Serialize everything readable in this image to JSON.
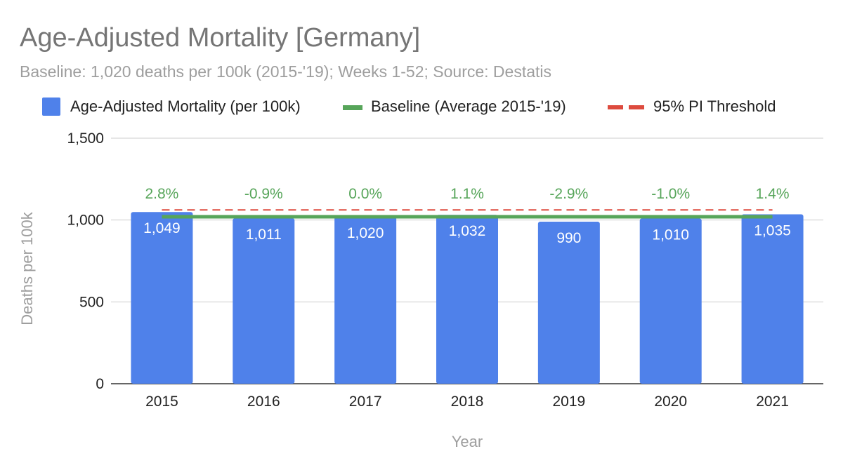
{
  "chart_data": {
    "type": "bar",
    "title": "Age-Adjusted Mortality [Germany]",
    "subtitle": "Baseline: 1,020 deaths per 100k (2015-'19); Weeks 1-52; Source: Destatis",
    "xlabel": "Year",
    "ylabel": "Deaths per 100k",
    "ylim": [
      0,
      1500
    ],
    "yticks": [
      0,
      500,
      1000,
      1500
    ],
    "ytick_labels": [
      "0",
      "500",
      "1,000",
      "1,500"
    ],
    "grid": true,
    "legend_position": "top",
    "categories": [
      "2015",
      "2016",
      "2017",
      "2018",
      "2019",
      "2020",
      "2021"
    ],
    "series": [
      {
        "name": "Age-Adjusted Mortality (per 100k)",
        "kind": "bar",
        "color": "#4f81ea",
        "values": [
          1049,
          1011,
          1020,
          1032,
          990,
          1010,
          1035
        ],
        "labels": [
          "1,049",
          "1,011",
          "1,020",
          "1,032",
          "990",
          "1,010",
          "1,035"
        ]
      },
      {
        "name": "Baseline (Average 2015-'19)",
        "kind": "line",
        "color": "#57a55a",
        "values": [
          1020,
          1020,
          1020,
          1020,
          1020,
          1020,
          1020
        ]
      },
      {
        "name": "95% PI Threshold",
        "kind": "dashed-line",
        "color": "#dd4b3e",
        "values": [
          1062,
          1062,
          1062,
          1062,
          1062,
          1062,
          1062
        ]
      }
    ],
    "annotations": {
      "color": "#57a55a",
      "labels": [
        "2.8%",
        "-0.9%",
        "0.0%",
        "1.1%",
        "-2.9%",
        "-1.0%",
        "1.4%"
      ],
      "y": 1200
    }
  }
}
